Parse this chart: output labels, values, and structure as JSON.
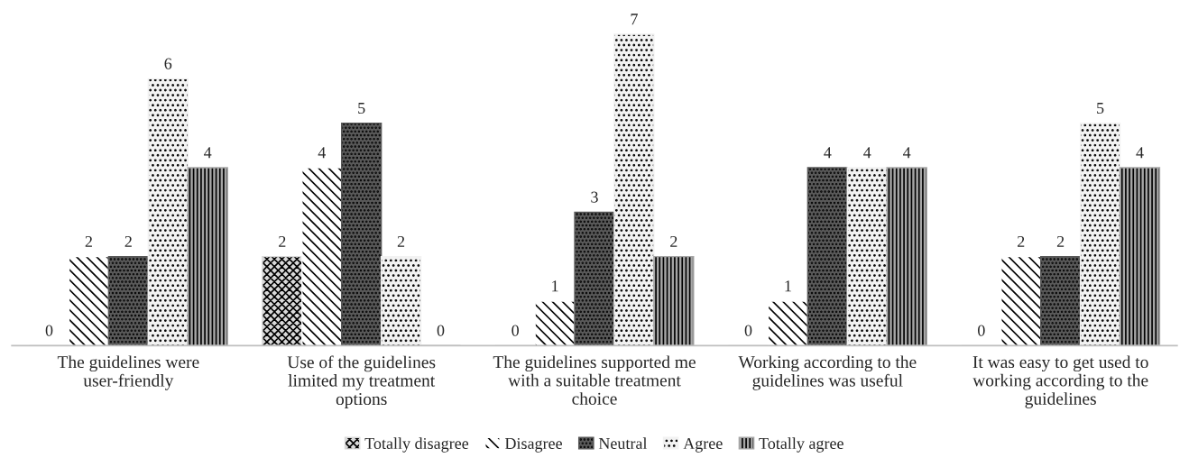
{
  "chart_data": {
    "type": "bar",
    "categories": [
      "The guidelines were user-friendly",
      "Use of the guidelines limited my treatment options",
      "The guidelines supported me with a suitable treatment choice",
      "Working according to the guidelines was useful",
      "It was easy to get used to working according to the guidelines"
    ],
    "series": [
      {
        "name": "Totally disagree",
        "color": "#d9d9d9",
        "values": [
          0,
          2,
          0,
          0,
          0
        ]
      },
      {
        "name": "Disagree",
        "color": "#ffffff",
        "values": [
          2,
          4,
          1,
          1,
          2
        ]
      },
      {
        "name": "Neutral",
        "color": "#595959",
        "values": [
          2,
          5,
          3,
          4,
          2
        ]
      },
      {
        "name": "Agree",
        "color": "#f2f2f2",
        "values": [
          6,
          2,
          7,
          4,
          5
        ]
      },
      {
        "name": "Totally agree",
        "color": "#a6a6a6",
        "values": [
          4,
          0,
          2,
          4,
          4
        ]
      }
    ],
    "data_labels": true,
    "grid": false,
    "legend": "bottom"
  }
}
